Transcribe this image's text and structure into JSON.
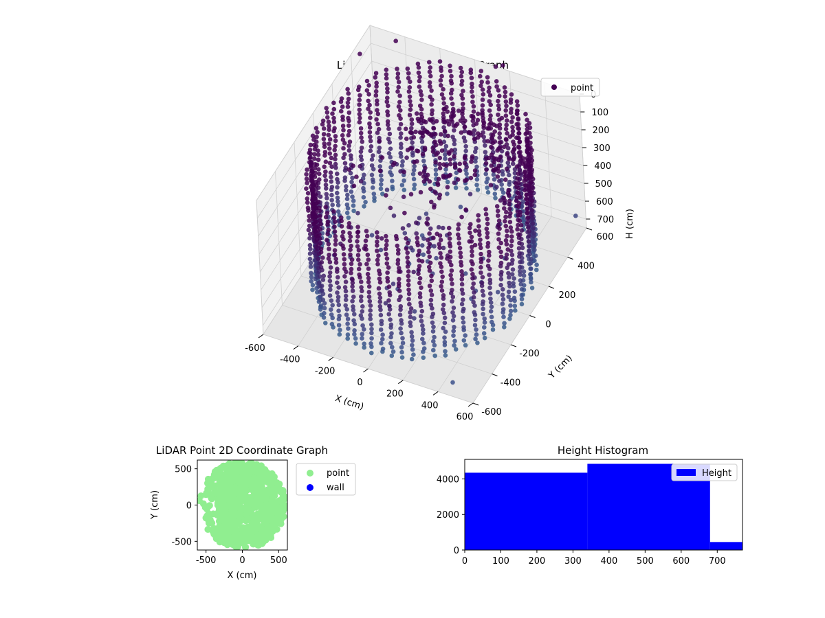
{
  "chart_data": [
    {
      "id": "lidar3d",
      "type": "scatter",
      "projection": "3d",
      "title": "LiDAR Point 3D Coordinate Graph",
      "xlabel": "X (cm)",
      "ylabel": "Y (cm)",
      "zlabel": "H (cm)",
      "xlim": [
        -600,
        600
      ],
      "ylim": [
        -600,
        600
      ],
      "zlim": [
        750,
        0
      ],
      "zaxis_inverted": true,
      "xticks": [
        -600,
        -400,
        -200,
        0,
        200,
        400,
        600
      ],
      "yticks": [
        -600,
        -400,
        -200,
        0,
        200,
        400,
        600
      ],
      "zticks": [
        0,
        100,
        200,
        300,
        400,
        500,
        600,
        700
      ],
      "legend": {
        "entries": [
          "point"
        ],
        "placement": "top-right"
      },
      "colormap": "viridis",
      "series": [
        {
          "name": "point",
          "description": "Approximately cylindrical wall of points of radius ~560 cm spanning heights ~0–750 cm, plus inner ceiling-like cluster and scattered outliers",
          "cylinder": {
            "center": [
              0,
              0
            ],
            "radius": 560,
            "h_range": [
              0,
              750
            ]
          },
          "outliers": [
            {
              "x": -560,
              "y": 420,
              "h": 0
            },
            {
              "x": -430,
              "y": 560,
              "h": 0
            },
            {
              "x": 120,
              "y": 600,
              "h": 0
            },
            {
              "x": 150,
              "y": 620,
              "h": 0
            },
            {
              "x": -700,
              "y": 300,
              "h": 250
            },
            {
              "x": 600,
              "y": 500,
              "h": 600
            },
            {
              "x": 500,
              "y": -620,
              "h": 650
            }
          ]
        }
      ],
      "grid": true,
      "color": "#440154"
    },
    {
      "id": "lidar2d",
      "type": "scatter",
      "title": "LiDAR Point 2D Coordinate Graph",
      "xlabel": "X (cm)",
      "ylabel": "Y (cm)",
      "xlim": [
        -620,
        620
      ],
      "ylim": [
        -620,
        620
      ],
      "xticks": [
        -500,
        0,
        500
      ],
      "yticks": [
        -500,
        0,
        500
      ],
      "legend": {
        "entries": [
          "point",
          "wall"
        ],
        "placement": "outside-right"
      },
      "series": [
        {
          "name": "point",
          "color": "#90ee90",
          "description": "Dense filled disk of radius ~600 cm centered near origin"
        },
        {
          "name": "wall",
          "color": "#0000ff",
          "points": []
        }
      ]
    },
    {
      "id": "histogram",
      "type": "bar",
      "title": "Height Histogram",
      "xlim": [
        0,
        770
      ],
      "ylim": [
        0,
        5100
      ],
      "xticks": [
        0,
        100,
        200,
        300,
        400,
        500,
        600,
        700
      ],
      "yticks": [
        0,
        2000,
        4000
      ],
      "legend": {
        "entries": [
          "Height"
        ],
        "placement": "top-right"
      },
      "series": [
        {
          "name": "Height",
          "color": "#0000ff",
          "bins": [
            {
              "x0": 0,
              "x1": 340,
              "count": 4350
            },
            {
              "x0": 340,
              "x1": 680,
              "count": 4850
            },
            {
              "x0": 680,
              "x1": 770,
              "count": 450
            }
          ]
        }
      ]
    }
  ]
}
